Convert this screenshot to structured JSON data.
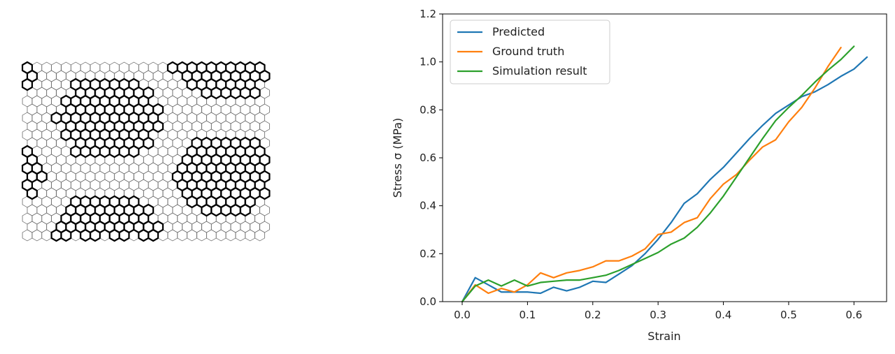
{
  "colors": {
    "axes": "#000000",
    "cell_thin": "#555555",
    "cell_bold": "#000000",
    "predicted": "#1f77b4",
    "ground_truth": "#ff7f0e",
    "simulation": "#2ca02c"
  },
  "lattice": {
    "rows": 21,
    "cols": 25,
    "bold_cells": [
      [
        0,
        0
      ],
      [
        1,
        0
      ],
      [
        2,
        0
      ],
      [
        0,
        15
      ],
      [
        0,
        16
      ],
      [
        0,
        17
      ],
      [
        0,
        18
      ],
      [
        0,
        19
      ],
      [
        0,
        20
      ],
      [
        0,
        21
      ],
      [
        0,
        22
      ],
      [
        0,
        23
      ],
      [
        0,
        24
      ],
      [
        1,
        16
      ],
      [
        1,
        17
      ],
      [
        1,
        18
      ],
      [
        1,
        19
      ],
      [
        1,
        20
      ],
      [
        1,
        21
      ],
      [
        1,
        22
      ],
      [
        1,
        23
      ],
      [
        1,
        24
      ],
      [
        2,
        17
      ],
      [
        2,
        18
      ],
      [
        2,
        19
      ],
      [
        2,
        20
      ],
      [
        2,
        21
      ],
      [
        2,
        22
      ],
      [
        2,
        23
      ],
      [
        3,
        18
      ],
      [
        3,
        19
      ],
      [
        3,
        20
      ],
      [
        3,
        21
      ],
      [
        3,
        22
      ],
      [
        3,
        23
      ],
      [
        2,
        5
      ],
      [
        2,
        6
      ],
      [
        2,
        7
      ],
      [
        2,
        8
      ],
      [
        2,
        9
      ],
      [
        2,
        10
      ],
      [
        2,
        11
      ],
      [
        3,
        5
      ],
      [
        3,
        6
      ],
      [
        3,
        7
      ],
      [
        3,
        8
      ],
      [
        3,
        9
      ],
      [
        3,
        10
      ],
      [
        3,
        11
      ],
      [
        3,
        12
      ],
      [
        4,
        4
      ],
      [
        4,
        5
      ],
      [
        4,
        6
      ],
      [
        4,
        7
      ],
      [
        4,
        8
      ],
      [
        4,
        9
      ],
      [
        4,
        10
      ],
      [
        4,
        11
      ],
      [
        4,
        12
      ],
      [
        5,
        4
      ],
      [
        5,
        5
      ],
      [
        5,
        6
      ],
      [
        5,
        7
      ],
      [
        5,
        8
      ],
      [
        5,
        9
      ],
      [
        5,
        10
      ],
      [
        5,
        11
      ],
      [
        5,
        12
      ],
      [
        5,
        13
      ],
      [
        6,
        3
      ],
      [
        6,
        4
      ],
      [
        6,
        5
      ],
      [
        6,
        6
      ],
      [
        6,
        7
      ],
      [
        6,
        8
      ],
      [
        6,
        9
      ],
      [
        6,
        10
      ],
      [
        6,
        11
      ],
      [
        6,
        12
      ],
      [
        6,
        13
      ],
      [
        7,
        4
      ],
      [
        7,
        5
      ],
      [
        7,
        6
      ],
      [
        7,
        7
      ],
      [
        7,
        8
      ],
      [
        7,
        9
      ],
      [
        7,
        10
      ],
      [
        7,
        11
      ],
      [
        7,
        12
      ],
      [
        7,
        13
      ],
      [
        8,
        4
      ],
      [
        8,
        5
      ],
      [
        8,
        6
      ],
      [
        8,
        7
      ],
      [
        8,
        8
      ],
      [
        8,
        9
      ],
      [
        8,
        10
      ],
      [
        8,
        11
      ],
      [
        8,
        12
      ],
      [
        9,
        5
      ],
      [
        9,
        6
      ],
      [
        9,
        7
      ],
      [
        9,
        8
      ],
      [
        9,
        9
      ],
      [
        9,
        10
      ],
      [
        9,
        11
      ],
      [
        9,
        12
      ],
      [
        10,
        5
      ],
      [
        10,
        6
      ],
      [
        10,
        7
      ],
      [
        10,
        8
      ],
      [
        10,
        9
      ],
      [
        10,
        10
      ],
      [
        10,
        11
      ],
      [
        9,
        17
      ],
      [
        9,
        18
      ],
      [
        9,
        19
      ],
      [
        9,
        20
      ],
      [
        9,
        21
      ],
      [
        9,
        22
      ],
      [
        9,
        23
      ],
      [
        10,
        17
      ],
      [
        10,
        18
      ],
      [
        10,
        19
      ],
      [
        10,
        20
      ],
      [
        10,
        21
      ],
      [
        10,
        22
      ],
      [
        10,
        23
      ],
      [
        10,
        24
      ],
      [
        11,
        16
      ],
      [
        11,
        17
      ],
      [
        11,
        18
      ],
      [
        11,
        19
      ],
      [
        11,
        20
      ],
      [
        11,
        21
      ],
      [
        11,
        22
      ],
      [
        11,
        23
      ],
      [
        11,
        24
      ],
      [
        12,
        16
      ],
      [
        12,
        17
      ],
      [
        12,
        18
      ],
      [
        12,
        19
      ],
      [
        12,
        20
      ],
      [
        12,
        21
      ],
      [
        12,
        22
      ],
      [
        12,
        23
      ],
      [
        12,
        24
      ],
      [
        13,
        15
      ],
      [
        13,
        16
      ],
      [
        13,
        17
      ],
      [
        13,
        18
      ],
      [
        13,
        19
      ],
      [
        13,
        20
      ],
      [
        13,
        21
      ],
      [
        13,
        22
      ],
      [
        13,
        23
      ],
      [
        13,
        24
      ],
      [
        14,
        16
      ],
      [
        14,
        17
      ],
      [
        14,
        18
      ],
      [
        14,
        19
      ],
      [
        14,
        20
      ],
      [
        14,
        21
      ],
      [
        14,
        22
      ],
      [
        14,
        23
      ],
      [
        14,
        24
      ],
      [
        15,
        16
      ],
      [
        15,
        17
      ],
      [
        15,
        18
      ],
      [
        15,
        19
      ],
      [
        15,
        20
      ],
      [
        15,
        21
      ],
      [
        15,
        22
      ],
      [
        15,
        23
      ],
      [
        15,
        24
      ],
      [
        16,
        17
      ],
      [
        16,
        18
      ],
      [
        16,
        19
      ],
      [
        16,
        20
      ],
      [
        16,
        21
      ],
      [
        16,
        22
      ],
      [
        16,
        23
      ],
      [
        17,
        18
      ],
      [
        17,
        19
      ],
      [
        17,
        20
      ],
      [
        17,
        21
      ],
      [
        17,
        22
      ],
      [
        10,
        0
      ],
      [
        11,
        0
      ],
      [
        12,
        0
      ],
      [
        12,
        1
      ],
      [
        13,
        0
      ],
      [
        13,
        1
      ],
      [
        14,
        0
      ],
      [
        15,
        0
      ],
      [
        16,
        5
      ],
      [
        16,
        6
      ],
      [
        16,
        7
      ],
      [
        16,
        8
      ],
      [
        16,
        9
      ],
      [
        16,
        10
      ],
      [
        16,
        11
      ],
      [
        17,
        4
      ],
      [
        17,
        5
      ],
      [
        17,
        6
      ],
      [
        17,
        7
      ],
      [
        17,
        8
      ],
      [
        17,
        9
      ],
      [
        17,
        10
      ],
      [
        17,
        11
      ],
      [
        17,
        12
      ],
      [
        18,
        4
      ],
      [
        18,
        5
      ],
      [
        18,
        6
      ],
      [
        18,
        7
      ],
      [
        18,
        8
      ],
      [
        18,
        9
      ],
      [
        18,
        10
      ],
      [
        18,
        11
      ],
      [
        18,
        12
      ],
      [
        19,
        3
      ],
      [
        19,
        4
      ],
      [
        19,
        5
      ],
      [
        19,
        6
      ],
      [
        19,
        7
      ],
      [
        19,
        8
      ],
      [
        19,
        9
      ],
      [
        19,
        10
      ],
      [
        19,
        11
      ],
      [
        19,
        12
      ],
      [
        19,
        13
      ],
      [
        20,
        3
      ],
      [
        20,
        4
      ],
      [
        20,
        6
      ],
      [
        20,
        7
      ],
      [
        20,
        9
      ],
      [
        20,
        10
      ],
      [
        20,
        12
      ],
      [
        20,
        13
      ]
    ]
  },
  "chart_data": {
    "type": "line",
    "xlabel": "Strain",
    "ylabel": "Stress σ (MPa)",
    "xlim": [
      -0.03,
      0.65
    ],
    "ylim": [
      0,
      1.2
    ],
    "xticks": [
      "0.0",
      "0.1",
      "0.2",
      "0.3",
      "0.4",
      "0.5",
      "0.6"
    ],
    "yticks": [
      "0.0",
      "0.2",
      "0.4",
      "0.6",
      "0.8",
      "1.0",
      "1.2"
    ],
    "grid": false,
    "legend_position": "top-left",
    "series": [
      {
        "name": "Predicted",
        "x": [
          0.0,
          0.02,
          0.04,
          0.06,
          0.08,
          0.1,
          0.12,
          0.14,
          0.16,
          0.18,
          0.2,
          0.22,
          0.24,
          0.26,
          0.28,
          0.3,
          0.32,
          0.34,
          0.36,
          0.38,
          0.4,
          0.42,
          0.44,
          0.46,
          0.48,
          0.5,
          0.52,
          0.54,
          0.56,
          0.58,
          0.6,
          0.62
        ],
        "y": [
          0.0,
          0.1,
          0.07,
          0.04,
          0.04,
          0.04,
          0.035,
          0.06,
          0.045,
          0.06,
          0.085,
          0.08,
          0.115,
          0.15,
          0.2,
          0.26,
          0.33,
          0.41,
          0.45,
          0.51,
          0.56,
          0.62,
          0.68,
          0.735,
          0.785,
          0.82,
          0.855,
          0.875,
          0.905,
          0.94,
          0.97,
          1.02
        ]
      },
      {
        "name": "Ground truth",
        "x": [
          0.0,
          0.02,
          0.04,
          0.06,
          0.08,
          0.1,
          0.12,
          0.14,
          0.16,
          0.18,
          0.2,
          0.22,
          0.24,
          0.26,
          0.28,
          0.3,
          0.32,
          0.34,
          0.36,
          0.38,
          0.4,
          0.42,
          0.44,
          0.46,
          0.48,
          0.5,
          0.52,
          0.54,
          0.56,
          0.58
        ],
        "y": [
          0.0,
          0.07,
          0.035,
          0.055,
          0.04,
          0.07,
          0.12,
          0.1,
          0.12,
          0.13,
          0.145,
          0.17,
          0.17,
          0.19,
          0.22,
          0.28,
          0.29,
          0.33,
          0.35,
          0.43,
          0.49,
          0.53,
          0.59,
          0.645,
          0.675,
          0.75,
          0.81,
          0.89,
          0.98,
          1.06
        ]
      },
      {
        "name": "Simulation result",
        "x": [
          0.0,
          0.02,
          0.04,
          0.06,
          0.08,
          0.1,
          0.12,
          0.14,
          0.16,
          0.18,
          0.2,
          0.22,
          0.24,
          0.26,
          0.28,
          0.3,
          0.32,
          0.34,
          0.36,
          0.38,
          0.4,
          0.42,
          0.44,
          0.46,
          0.48,
          0.5,
          0.52,
          0.54,
          0.56,
          0.58,
          0.6
        ],
        "y": [
          0.0,
          0.065,
          0.09,
          0.065,
          0.09,
          0.065,
          0.08,
          0.085,
          0.09,
          0.09,
          0.1,
          0.11,
          0.13,
          0.155,
          0.18,
          0.205,
          0.24,
          0.265,
          0.31,
          0.37,
          0.44,
          0.52,
          0.6,
          0.68,
          0.755,
          0.81,
          0.86,
          0.915,
          0.965,
          1.01,
          1.065
        ]
      }
    ]
  }
}
